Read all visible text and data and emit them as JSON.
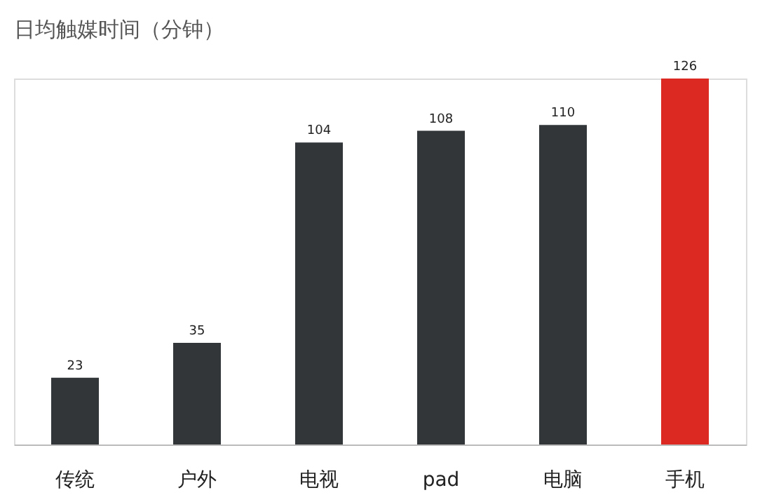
{
  "chart_data": {
    "type": "bar",
    "title": "日均触媒时间（分钟）",
    "categories": [
      "传统",
      "户外",
      "电视",
      "pad",
      "电脑",
      "手机"
    ],
    "values": [
      23,
      35,
      104,
      108,
      110,
      126
    ],
    "colors": [
      "#323639",
      "#323639",
      "#323639",
      "#323639",
      "#323639",
      "#dc2a22"
    ],
    "data_labels": true
  }
}
